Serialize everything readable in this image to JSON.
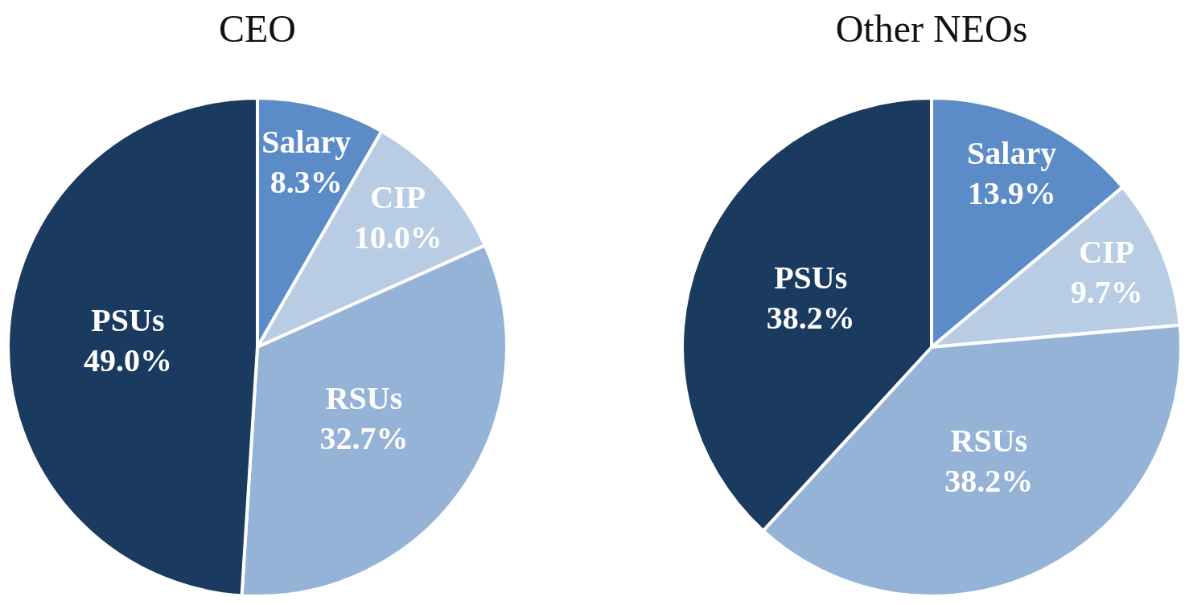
{
  "chart_data": [
    {
      "type": "pie",
      "title": "CEO",
      "categories": [
        "Salary",
        "CIP",
        "RSUs",
        "PSUs"
      ],
      "values": [
        8.3,
        10.0,
        32.7,
        49.0
      ],
      "value_labels": [
        "8.3%",
        "10.0%",
        "32.7%",
        "49.0%"
      ],
      "colors": [
        "#5b8cc8",
        "#b8cce4",
        "#95b3d7",
        "#1b3a5f"
      ],
      "legend": false
    },
    {
      "type": "pie",
      "title": "Other NEOs",
      "categories": [
        "Salary",
        "CIP",
        "RSUs",
        "PSUs"
      ],
      "values": [
        13.9,
        9.7,
        38.2,
        38.2
      ],
      "value_labels": [
        "13.9%",
        "9.7%",
        "38.2%",
        "38.2%"
      ],
      "colors": [
        "#5b8cc8",
        "#b8cce4",
        "#95b3d7",
        "#1b3a5f"
      ],
      "legend": false
    }
  ]
}
